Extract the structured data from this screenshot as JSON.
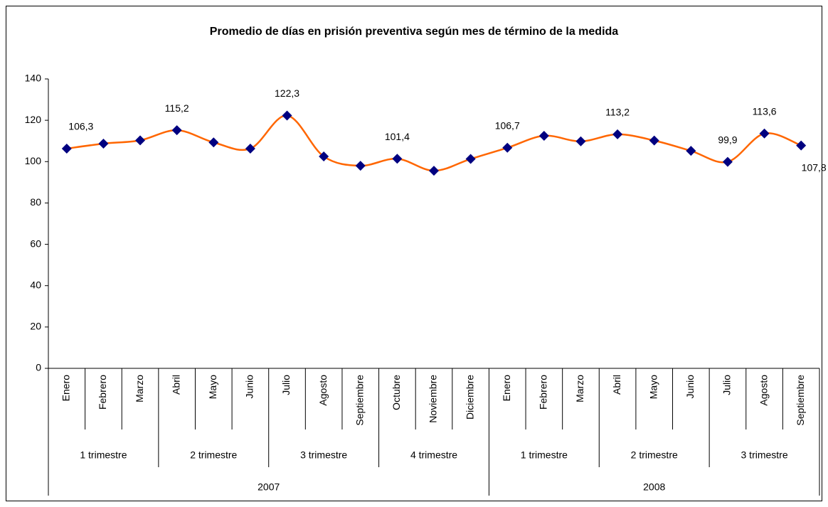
{
  "chart_data": {
    "type": "line",
    "title": "Promedio de días en prisión preventiva según mes de término de la medida",
    "years": [
      {
        "label": "2007",
        "quarters": [
          {
            "label": "1 trimestre",
            "months": [
              "Enero",
              "Febrero",
              "Marzo"
            ]
          },
          {
            "label": "2 trimestre",
            "months": [
              "Abril",
              "Mayo",
              "Junio"
            ]
          },
          {
            "label": "3 trimestre",
            "months": [
              "Julio",
              "Agosto",
              "Septiembre"
            ]
          },
          {
            "label": "4 trimestre",
            "months": [
              "Octubre",
              "Noviembre",
              "Diciembre"
            ]
          }
        ]
      },
      {
        "label": "2008",
        "quarters": [
          {
            "label": "1 trimestre",
            "months": [
              "Enero",
              "Febrero",
              "Marzo"
            ]
          },
          {
            "label": "2 trimestre",
            "months": [
              "Abril",
              "Mayo",
              "Junio"
            ]
          },
          {
            "label": "3 trimestre",
            "months": [
              "Julio",
              "Agosto",
              "Septiembre"
            ]
          }
        ]
      }
    ],
    "values": [
      106.3,
      108.7,
      110.3,
      115.2,
      109.3,
      106.3,
      122.3,
      102.5,
      98.0,
      101.4,
      95.6,
      101.3,
      106.7,
      112.5,
      109.8,
      113.2,
      110.2,
      105.2,
      99.9,
      113.6,
      107.8
    ],
    "value_labels": [
      "106,3",
      null,
      null,
      "115,2",
      null,
      null,
      "122,3",
      null,
      null,
      "101,4",
      null,
      null,
      "106,7",
      null,
      null,
      "113,2",
      null,
      null,
      "99,9",
      "113,6",
      "107,8"
    ],
    "line_color": "#ff6600",
    "marker_color": "#000080",
    "smooth": true,
    "ylim": [
      0,
      140
    ],
    "yticks": [
      0,
      20,
      40,
      60,
      80,
      100,
      120,
      140
    ]
  }
}
